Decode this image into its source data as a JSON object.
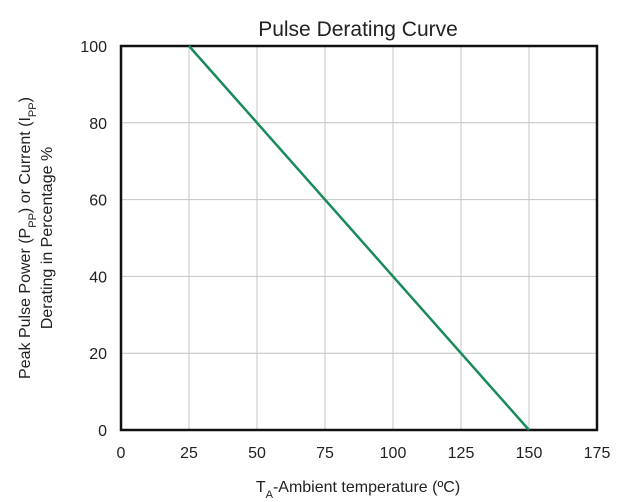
{
  "chart_data": {
    "type": "line",
    "title": "Pulse Derating Curve",
    "xlabel": [
      {
        "text": "T"
      },
      {
        "text": "A",
        "sub": true
      },
      {
        "text": "-Ambient temperature (ºC)"
      }
    ],
    "ylabel": [
      [
        {
          "text": "Peak Pulse Power (P"
        },
        {
          "text": "PP",
          "sub": true
        },
        {
          "text": ") or Current (I"
        },
        {
          "text": "PP",
          "sub": true
        },
        {
          "text": ")"
        }
      ],
      [
        {
          "text": "Derating in Percentage %"
        }
      ]
    ],
    "x": [
      25,
      150
    ],
    "values": [
      100,
      0
    ],
    "color": "#1b8a5a",
    "xlim": [
      0,
      175
    ],
    "xticks": [
      0,
      25,
      50,
      75,
      100,
      125,
      150,
      175
    ],
    "ylim": [
      0,
      100
    ],
    "yticks": [
      0,
      20,
      40,
      60,
      80,
      100
    ],
    "grid": true
  }
}
